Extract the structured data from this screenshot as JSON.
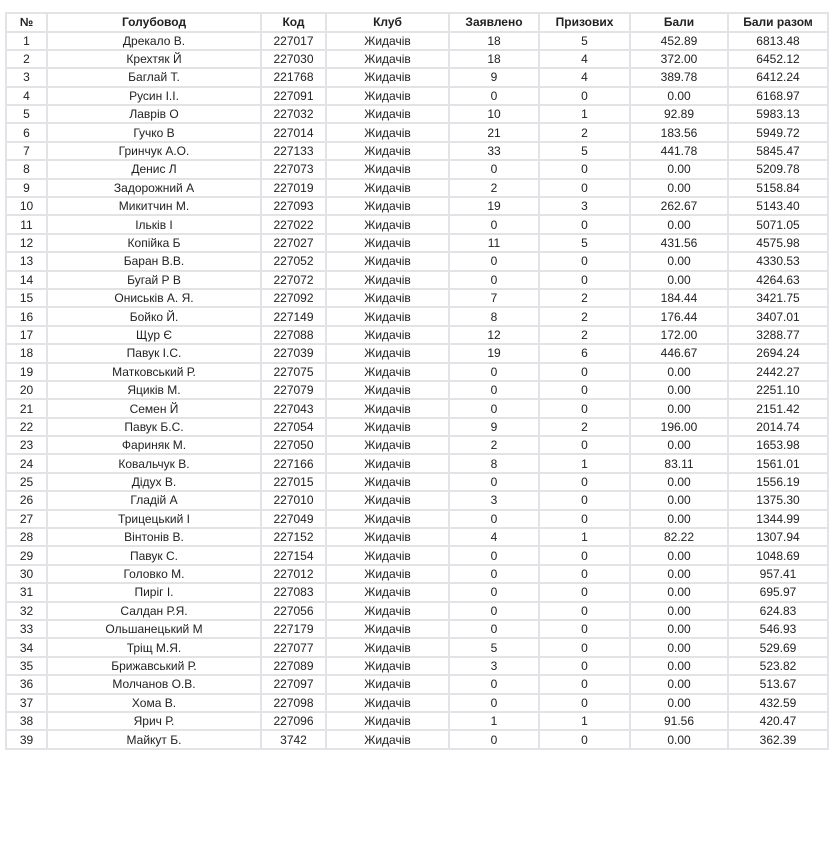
{
  "headers": [
    "№",
    "Голубовод",
    "Код",
    "Клуб",
    "Заявлено",
    "Призових",
    "Бали",
    "Бали разом"
  ],
  "rows": [
    [
      "1",
      "Дрекало В.",
      "227017",
      "Жидачів",
      "18",
      "5",
      "452.89",
      "6813.48"
    ],
    [
      "2",
      "Крехтяк Й",
      "227030",
      "Жидачів",
      "18",
      "4",
      "372.00",
      "6452.12"
    ],
    [
      "3",
      "Баглай Т.",
      "221768",
      "Жидачів",
      "9",
      "4",
      "389.78",
      "6412.24"
    ],
    [
      "4",
      "Русин І.І.",
      "227091",
      "Жидачів",
      "0",
      "0",
      "0.00",
      "6168.97"
    ],
    [
      "5",
      "Лаврів О",
      "227032",
      "Жидачів",
      "10",
      "1",
      "92.89",
      "5983.13"
    ],
    [
      "6",
      "Гучко В",
      "227014",
      "Жидачів",
      "21",
      "2",
      "183.56",
      "5949.72"
    ],
    [
      "7",
      "Гринчук А.О.",
      "227133",
      "Жидачів",
      "33",
      "5",
      "441.78",
      "5845.47"
    ],
    [
      "8",
      "Денис Л",
      "227073",
      "Жидачів",
      "0",
      "0",
      "0.00",
      "5209.78"
    ],
    [
      "9",
      "Задорожний А",
      "227019",
      "Жидачів",
      "2",
      "0",
      "0.00",
      "5158.84"
    ],
    [
      "10",
      "Микитчин М.",
      "227093",
      "Жидачів",
      "19",
      "3",
      "262.67",
      "5143.40"
    ],
    [
      "11",
      "Ільків І",
      "227022",
      "Жидачів",
      "0",
      "0",
      "0.00",
      "5071.05"
    ],
    [
      "12",
      "Копійка Б",
      "227027",
      "Жидачів",
      "11",
      "5",
      "431.56",
      "4575.98"
    ],
    [
      "13",
      "Баран В.В.",
      "227052",
      "Жидачів",
      "0",
      "0",
      "0.00",
      "4330.53"
    ],
    [
      "14",
      "Бугай Р В",
      "227072",
      "Жидачів",
      "0",
      "0",
      "0.00",
      "4264.63"
    ],
    [
      "15",
      "Ониськів А. Я.",
      "227092",
      "Жидачів",
      "7",
      "2",
      "184.44",
      "3421.75"
    ],
    [
      "16",
      "Бойко Й.",
      "227149",
      "Жидачів",
      "8",
      "2",
      "176.44",
      "3407.01"
    ],
    [
      "17",
      "Щур Є",
      "227088",
      "Жидачів",
      "12",
      "2",
      "172.00",
      "3288.77"
    ],
    [
      "18",
      "Павук І.С.",
      "227039",
      "Жидачів",
      "19",
      "6",
      "446.67",
      "2694.24"
    ],
    [
      "19",
      "Матковський Р.",
      "227075",
      "Жидачів",
      "0",
      "0",
      "0.00",
      "2442.27"
    ],
    [
      "20",
      "Яциків М.",
      "227079",
      "Жидачів",
      "0",
      "0",
      "0.00",
      "2251.10"
    ],
    [
      "21",
      "Семен Й",
      "227043",
      "Жидачів",
      "0",
      "0",
      "0.00",
      "2151.42"
    ],
    [
      "22",
      "Павук Б.С.",
      "227054",
      "Жидачів",
      "9",
      "2",
      "196.00",
      "2014.74"
    ],
    [
      "23",
      "Фариняк М.",
      "227050",
      "Жидачів",
      "2",
      "0",
      "0.00",
      "1653.98"
    ],
    [
      "24",
      "Ковальчук В.",
      "227166",
      "Жидачів",
      "8",
      "1",
      "83.11",
      "1561.01"
    ],
    [
      "25",
      "Дідух В.",
      "227015",
      "Жидачів",
      "0",
      "0",
      "0.00",
      "1556.19"
    ],
    [
      "26",
      "Гладій А",
      "227010",
      "Жидачів",
      "3",
      "0",
      "0.00",
      "1375.30"
    ],
    [
      "27",
      "Трицецький І",
      "227049",
      "Жидачів",
      "0",
      "0",
      "0.00",
      "1344.99"
    ],
    [
      "28",
      "Вінтонів В.",
      "227152",
      "Жидачів",
      "4",
      "1",
      "82.22",
      "1307.94"
    ],
    [
      "29",
      "Павук С.",
      "227154",
      "Жидачів",
      "0",
      "0",
      "0.00",
      "1048.69"
    ],
    [
      "30",
      "Головко М.",
      "227012",
      "Жидачів",
      "0",
      "0",
      "0.00",
      "957.41"
    ],
    [
      "31",
      "Пиріг І.",
      "227083",
      "Жидачів",
      "0",
      "0",
      "0.00",
      "695.97"
    ],
    [
      "32",
      "Салдан Р.Я.",
      "227056",
      "Жидачів",
      "0",
      "0",
      "0.00",
      "624.83"
    ],
    [
      "33",
      "Ольшанецький М",
      "227179",
      "Жидачів",
      "0",
      "0",
      "0.00",
      "546.93"
    ],
    [
      "34",
      "Тріщ М.Я.",
      "227077",
      "Жидачів",
      "5",
      "0",
      "0.00",
      "529.69"
    ],
    [
      "35",
      "Брижавський Р.",
      "227089",
      "Жидачів",
      "3",
      "0",
      "0.00",
      "523.82"
    ],
    [
      "36",
      "Молчанов О.В.",
      "227097",
      "Жидачів",
      "0",
      "0",
      "0.00",
      "513.67"
    ],
    [
      "37",
      "Хома В.",
      "227098",
      "Жидачів",
      "0",
      "0",
      "0.00",
      "432.59"
    ],
    [
      "38",
      "Ярич Р.",
      "227096",
      "Жидачів",
      "1",
      "1",
      "91.56",
      "420.47"
    ],
    [
      "39",
      "Майкут Б.",
      "3742",
      "Жидачів",
      "0",
      "0",
      "0.00",
      "362.39"
    ]
  ]
}
